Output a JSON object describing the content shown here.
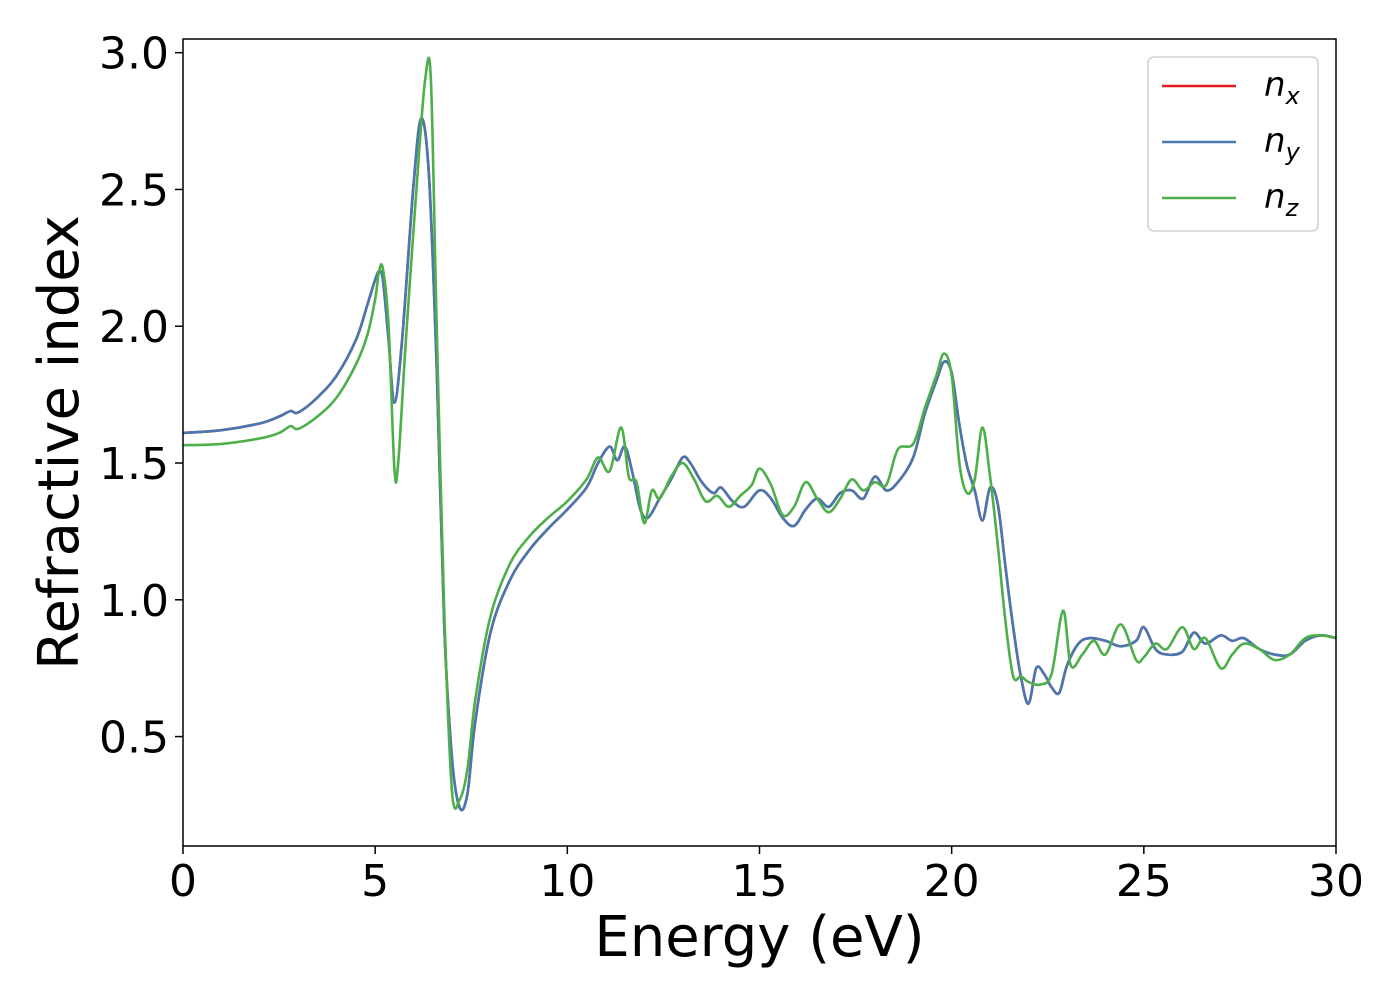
{
  "chart_data": {
    "type": "line",
    "title": "",
    "xlabel": "Energy (eV)",
    "ylabel": "Refractive index",
    "xlim": [
      0,
      30
    ],
    "ylim": [
      0.1,
      3.05
    ],
    "xticks": [
      0,
      5,
      10,
      15,
      20,
      25,
      30
    ],
    "xtick_labels": [
      "0",
      "5",
      "10",
      "15",
      "20",
      "25",
      "30"
    ],
    "yticks": [
      0.5,
      1.0,
      1.5,
      2.0,
      2.5,
      3.0
    ],
    "ytick_labels": [
      "0.5",
      "1.0",
      "1.5",
      "2.0",
      "2.5",
      "3.0"
    ],
    "grid": false,
    "legend_position": "top-right",
    "series": [
      {
        "name": "n_x",
        "legend_main": "n",
        "legend_sub": "x",
        "color": "#e41a1c",
        "x": [
          0,
          1,
          2,
          2.5,
          2.8,
          3.0,
          3.5,
          4.0,
          4.5,
          4.8,
          5.0,
          5.1,
          5.2,
          5.35,
          5.5,
          5.7,
          6.0,
          6.2,
          6.4,
          6.6,
          6.8,
          7.0,
          7.2,
          7.4,
          7.6,
          8.0,
          8.5,
          9.0,
          9.5,
          10.0,
          10.5,
          10.8,
          11.1,
          11.3,
          11.5,
          11.7,
          11.9,
          12.1,
          12.4,
          12.7,
          13.0,
          13.2,
          13.5,
          13.8,
          14.0,
          14.3,
          14.6,
          15.0,
          15.3,
          15.6,
          15.9,
          16.2,
          16.5,
          16.8,
          17.1,
          17.4,
          17.7,
          18.0,
          18.3,
          18.6,
          19.0,
          19.3,
          19.6,
          19.8,
          20.0,
          20.2,
          20.4,
          20.6,
          20.8,
          21.0,
          21.2,
          21.4,
          21.6,
          21.8,
          22.0,
          22.2,
          22.4,
          22.6,
          22.8,
          23.0,
          23.3,
          23.6,
          24.0,
          24.4,
          24.8,
          25.0,
          25.3,
          25.6,
          26.0,
          26.3,
          26.6,
          27.0,
          27.3,
          27.6,
          28.0,
          28.4,
          28.8,
          29.2,
          29.6,
          30.0
        ],
        "y": [
          1.61,
          1.62,
          1.645,
          1.67,
          1.69,
          1.685,
          1.74,
          1.82,
          1.95,
          2.08,
          2.17,
          2.2,
          2.17,
          1.95,
          1.72,
          1.95,
          2.52,
          2.76,
          2.55,
          1.85,
          0.9,
          0.42,
          0.24,
          0.29,
          0.55,
          0.88,
          1.07,
          1.18,
          1.26,
          1.33,
          1.41,
          1.5,
          1.56,
          1.51,
          1.56,
          1.46,
          1.33,
          1.3,
          1.37,
          1.44,
          1.52,
          1.5,
          1.43,
          1.39,
          1.41,
          1.36,
          1.34,
          1.4,
          1.37,
          1.3,
          1.27,
          1.33,
          1.37,
          1.34,
          1.39,
          1.4,
          1.37,
          1.45,
          1.4,
          1.43,
          1.52,
          1.68,
          1.8,
          1.87,
          1.83,
          1.64,
          1.49,
          1.4,
          1.29,
          1.41,
          1.35,
          1.12,
          0.9,
          0.72,
          0.62,
          0.75,
          0.73,
          0.68,
          0.66,
          0.76,
          0.84,
          0.86,
          0.85,
          0.83,
          0.85,
          0.9,
          0.82,
          0.8,
          0.81,
          0.88,
          0.84,
          0.87,
          0.85,
          0.86,
          0.82,
          0.8,
          0.8,
          0.85,
          0.87,
          0.86
        ]
      },
      {
        "name": "n_y",
        "legend_main": "n",
        "legend_sub": "y",
        "color": "#4878b0",
        "x": [
          0,
          1,
          2,
          2.5,
          2.8,
          3.0,
          3.5,
          4.0,
          4.5,
          4.8,
          5.0,
          5.1,
          5.2,
          5.35,
          5.5,
          5.7,
          6.0,
          6.2,
          6.4,
          6.6,
          6.8,
          7.0,
          7.2,
          7.4,
          7.6,
          8.0,
          8.5,
          9.0,
          9.5,
          10.0,
          10.5,
          10.8,
          11.1,
          11.3,
          11.5,
          11.7,
          11.9,
          12.1,
          12.4,
          12.7,
          13.0,
          13.2,
          13.5,
          13.8,
          14.0,
          14.3,
          14.6,
          15.0,
          15.3,
          15.6,
          15.9,
          16.2,
          16.5,
          16.8,
          17.1,
          17.4,
          17.7,
          18.0,
          18.3,
          18.6,
          19.0,
          19.3,
          19.6,
          19.8,
          20.0,
          20.2,
          20.4,
          20.6,
          20.8,
          21.0,
          21.2,
          21.4,
          21.6,
          21.8,
          22.0,
          22.2,
          22.4,
          22.6,
          22.8,
          23.0,
          23.3,
          23.6,
          24.0,
          24.4,
          24.8,
          25.0,
          25.3,
          25.6,
          26.0,
          26.3,
          26.6,
          27.0,
          27.3,
          27.6,
          28.0,
          28.4,
          28.8,
          29.2,
          29.6,
          30.0
        ],
        "y": [
          1.61,
          1.62,
          1.645,
          1.67,
          1.69,
          1.685,
          1.74,
          1.82,
          1.95,
          2.08,
          2.17,
          2.2,
          2.17,
          1.95,
          1.72,
          1.95,
          2.52,
          2.76,
          2.55,
          1.85,
          0.9,
          0.42,
          0.24,
          0.29,
          0.55,
          0.88,
          1.07,
          1.18,
          1.26,
          1.33,
          1.41,
          1.5,
          1.56,
          1.51,
          1.56,
          1.46,
          1.33,
          1.3,
          1.37,
          1.44,
          1.52,
          1.5,
          1.43,
          1.39,
          1.41,
          1.36,
          1.34,
          1.4,
          1.37,
          1.3,
          1.27,
          1.33,
          1.37,
          1.34,
          1.39,
          1.4,
          1.37,
          1.45,
          1.4,
          1.43,
          1.52,
          1.68,
          1.8,
          1.87,
          1.83,
          1.64,
          1.49,
          1.4,
          1.29,
          1.41,
          1.35,
          1.12,
          0.9,
          0.72,
          0.62,
          0.75,
          0.73,
          0.68,
          0.66,
          0.76,
          0.84,
          0.86,
          0.85,
          0.83,
          0.85,
          0.9,
          0.82,
          0.8,
          0.81,
          0.88,
          0.84,
          0.87,
          0.85,
          0.86,
          0.82,
          0.8,
          0.8,
          0.85,
          0.87,
          0.86
        ]
      },
      {
        "name": "n_z",
        "legend_main": "n",
        "legend_sub": "z",
        "color": "#4daf4a",
        "x": [
          0,
          1,
          2,
          2.5,
          2.8,
          3.0,
          3.5,
          4.0,
          4.5,
          4.8,
          5.0,
          5.1,
          5.2,
          5.35,
          5.5,
          5.6,
          5.8,
          6.1,
          6.3,
          6.45,
          6.6,
          6.8,
          7.0,
          7.2,
          7.4,
          7.6,
          8.0,
          8.5,
          9.0,
          9.5,
          10.0,
          10.5,
          10.8,
          11.1,
          11.4,
          11.6,
          11.8,
          12.0,
          12.2,
          12.4,
          12.7,
          13.0,
          13.3,
          13.6,
          13.9,
          14.2,
          14.5,
          14.8,
          15.0,
          15.3,
          15.6,
          15.9,
          16.2,
          16.5,
          16.8,
          17.1,
          17.4,
          17.7,
          18.0,
          18.3,
          18.6,
          19.0,
          19.3,
          19.6,
          19.8,
          20.0,
          20.2,
          20.4,
          20.6,
          20.8,
          21.0,
          21.2,
          21.4,
          21.6,
          21.8,
          22.0,
          22.3,
          22.6,
          22.9,
          23.1,
          23.4,
          23.7,
          24.0,
          24.4,
          24.8,
          25.0,
          25.3,
          25.6,
          26.0,
          26.3,
          26.6,
          27.0,
          27.3,
          27.6,
          28.0,
          28.4,
          28.8,
          29.2,
          29.6,
          30.0
        ],
        "y": [
          1.565,
          1.57,
          1.59,
          1.61,
          1.635,
          1.625,
          1.67,
          1.74,
          1.86,
          1.97,
          2.1,
          2.2,
          2.21,
          2.0,
          1.48,
          1.5,
          1.95,
          2.55,
          2.9,
          2.9,
          2.0,
          0.95,
          0.3,
          0.27,
          0.38,
          0.63,
          0.94,
          1.13,
          1.23,
          1.3,
          1.36,
          1.44,
          1.52,
          1.47,
          1.63,
          1.45,
          1.43,
          1.28,
          1.4,
          1.37,
          1.45,
          1.5,
          1.44,
          1.36,
          1.38,
          1.34,
          1.38,
          1.42,
          1.48,
          1.42,
          1.31,
          1.34,
          1.43,
          1.37,
          1.32,
          1.37,
          1.44,
          1.4,
          1.43,
          1.42,
          1.55,
          1.57,
          1.7,
          1.82,
          1.9,
          1.82,
          1.5,
          1.39,
          1.44,
          1.63,
          1.45,
          1.2,
          0.92,
          0.72,
          0.72,
          0.7,
          0.69,
          0.73,
          0.96,
          0.76,
          0.8,
          0.85,
          0.8,
          0.91,
          0.78,
          0.79,
          0.84,
          0.82,
          0.9,
          0.82,
          0.86,
          0.75,
          0.8,
          0.84,
          0.82,
          0.78,
          0.8,
          0.86,
          0.87,
          0.86
        ]
      }
    ]
  }
}
